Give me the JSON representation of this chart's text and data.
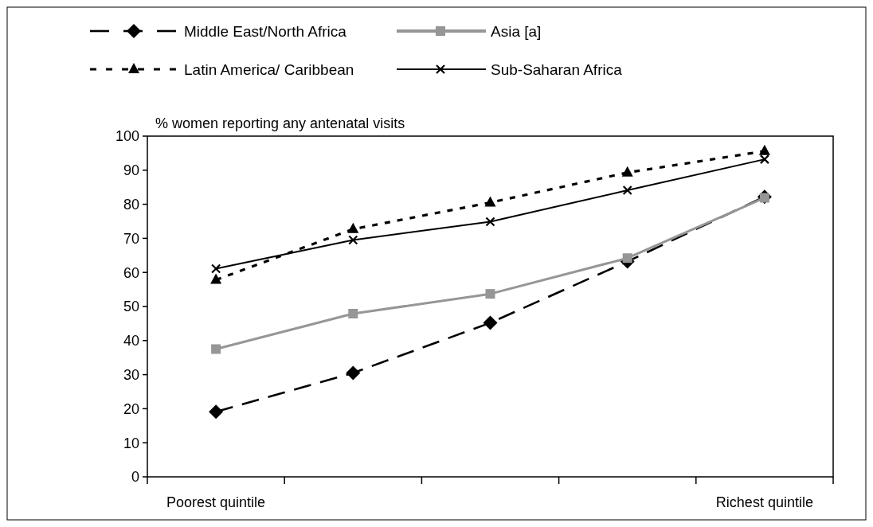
{
  "chart_data": {
    "type": "line",
    "ylabel": "% women reporting any antenatal visits",
    "categories": [
      "Poorest quintile",
      null,
      null,
      null,
      "Richest quintile"
    ],
    "series": [
      {
        "name": "Middle East/North Africa",
        "color": "#000000",
        "marker": "diamond",
        "line_style": "dashed",
        "values": [
          19.1,
          30.5,
          45.2,
          63.2,
          82.2
        ]
      },
      {
        "name": "Asia [a]",
        "color": "#969696",
        "marker": "square",
        "line_style": "solid",
        "values": [
          37.5,
          47.9,
          53.7,
          64.2,
          81.9
        ]
      },
      {
        "name": "Latin America/ Caribbean",
        "color": "#000000",
        "marker": "triangle",
        "line_style": "dotted",
        "values": [
          57.8,
          72.7,
          80.5,
          89.3,
          95.6
        ]
      },
      {
        "name": "Sub-Saharan Africa",
        "color": "#000000",
        "marker": "cross",
        "line_style": "solid",
        "values": [
          61.1,
          69.5,
          74.9,
          84.1,
          93.2
        ]
      }
    ],
    "ylim": [
      0,
      100
    ],
    "yticks": [
      0,
      10,
      20,
      30,
      40,
      50,
      60,
      70,
      80,
      90,
      100
    ],
    "grid": false,
    "legend": "top"
  }
}
